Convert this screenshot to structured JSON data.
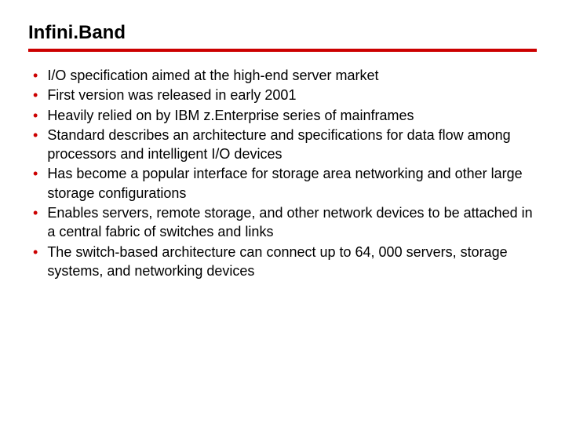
{
  "slide": {
    "title": "Infini.Band",
    "underline_color": "#cc0000",
    "bullet_color": "#cc0000",
    "text_color": "#000000",
    "background_color": "#ffffff",
    "title_fontsize": 24,
    "body_fontsize": 18,
    "bullets": [
      "I/O specification aimed at the high-end server market",
      "First version was released in early 2001",
      "Heavily relied on by IBM z.Enterprise series of mainframes",
      "Standard describes an architecture and specifications for data flow among processors and intelligent I/O devices",
      "Has become a popular interface for storage area networking and other large storage configurations",
      "Enables servers, remote storage, and other network devices to be attached in a central fabric of switches and links",
      "The switch-based architecture can connect up to 64, 000 servers, storage systems, and networking devices"
    ]
  }
}
